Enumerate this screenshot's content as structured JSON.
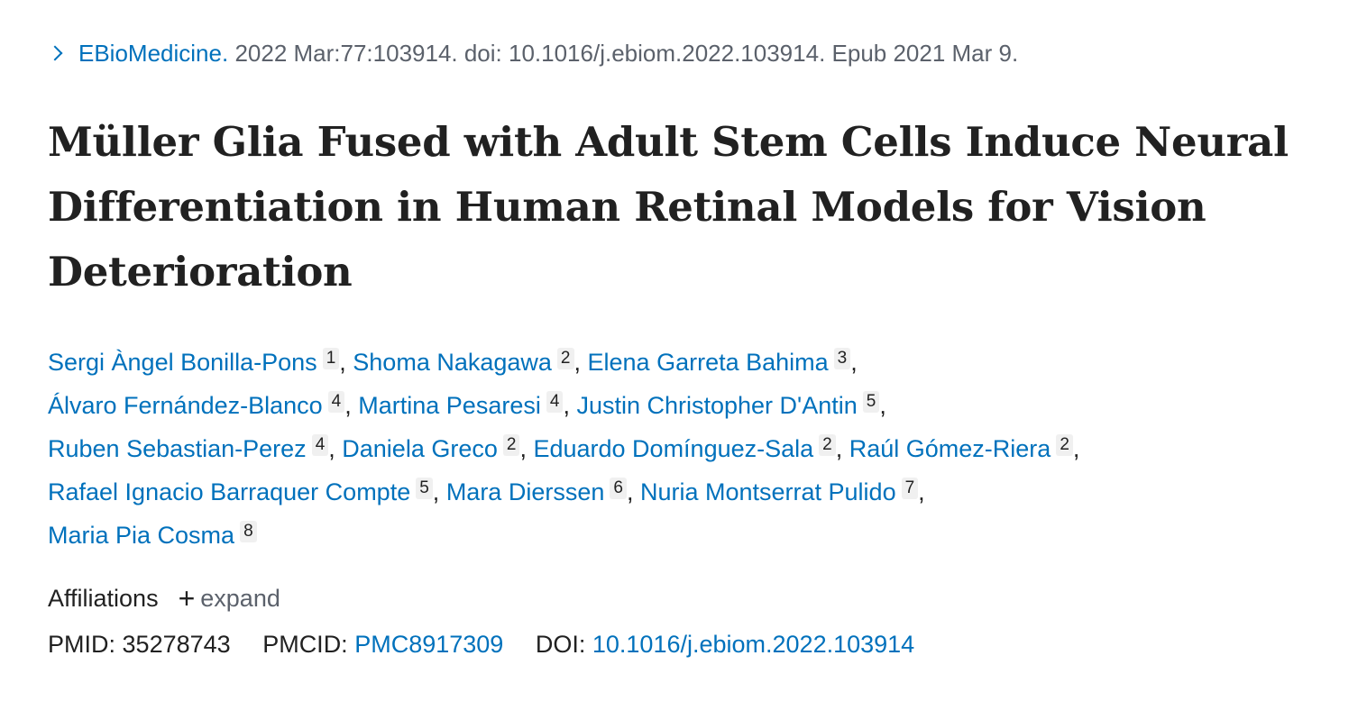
{
  "citation": {
    "journal": "EBioMedicine.",
    "details": "2022 Mar:77:103914. doi: 10.1016/j.ebiom.2022.103914. Epub 2021 Mar 9."
  },
  "title": "Müller Glia Fused with Adult Stem Cells Induce Neural Differentiation in Human Retinal Models for Vision Deterioration",
  "author_lines": [
    [
      {
        "name": "Sergi Àngel Bonilla-Pons",
        "aff": "1"
      },
      {
        "name": "Shoma Nakagawa",
        "aff": "2"
      },
      {
        "name": "Elena Garreta Bahima",
        "aff": "3"
      }
    ],
    [
      {
        "name": "Álvaro Fernández-Blanco",
        "aff": "4"
      },
      {
        "name": "Martina Pesaresi",
        "aff": "4"
      },
      {
        "name": "Justin Christopher D'Antin",
        "aff": "5"
      }
    ],
    [
      {
        "name": "Ruben Sebastian-Perez",
        "aff": "4"
      },
      {
        "name": "Daniela Greco",
        "aff": "2"
      },
      {
        "name": "Eduardo Domínguez-Sala",
        "aff": "2"
      },
      {
        "name": "Raúl Gómez-Riera",
        "aff": "2"
      }
    ],
    [
      {
        "name": "Rafael Ignacio Barraquer Compte",
        "aff": "5"
      },
      {
        "name": "Mara Dierssen",
        "aff": "6"
      },
      {
        "name": "Nuria Montserrat Pulido",
        "aff": "7"
      }
    ],
    [
      {
        "name": "Maria Pia Cosma",
        "aff": "8"
      }
    ]
  ],
  "affiliations": {
    "label": "Affiliations",
    "plus": "+",
    "expand": "expand"
  },
  "ids": {
    "pmid_label": "PMID:",
    "pmid": "35278743",
    "pmcid_label": "PMCID:",
    "pmcid": "PMC8917309",
    "doi_label": "DOI:",
    "doi": "10.1016/j.ebiom.2022.103914"
  },
  "colors": {
    "link": "#0071bc",
    "muted": "#5b616b",
    "text": "#212121"
  }
}
